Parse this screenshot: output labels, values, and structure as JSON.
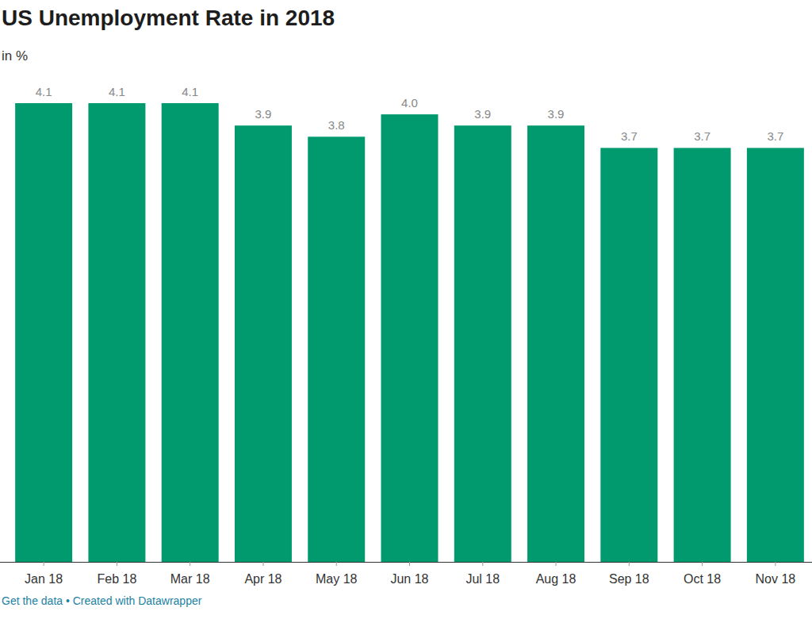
{
  "chart_data": {
    "type": "bar",
    "title": "US Unemployment Rate in 2018",
    "subtitle": "in %",
    "footer": "Get the data • Created with Datawrapper",
    "categories": [
      "Jan 18",
      "Feb 18",
      "Mar 18",
      "Apr 18",
      "May 18",
      "Jun 18",
      "Jul 18",
      "Aug 18",
      "Sep 18",
      "Oct 18",
      "Nov 18"
    ],
    "values": [
      4.1,
      4.1,
      4.1,
      3.9,
      3.8,
      4.0,
      3.9,
      3.9,
      3.7,
      3.7,
      3.7
    ],
    "value_labels": [
      "4.1",
      "4.1",
      "4.1",
      "3.9",
      "3.8",
      "4.0",
      "3.9",
      "3.9",
      "3.7",
      "3.7",
      "3.7"
    ],
    "color": "#009a6e",
    "ylim": [
      0,
      4.1
    ],
    "data_labels": true,
    "tick_labels": "x",
    "grid": false
  }
}
